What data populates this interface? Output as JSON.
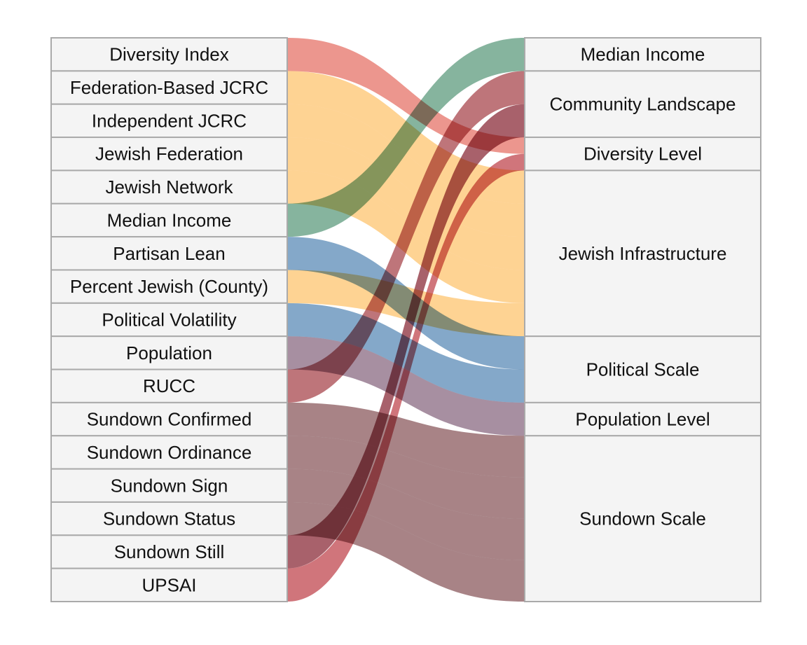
{
  "sources": [
    "Diversity Index",
    "Federation-Based JCRC",
    "Independent JCRC",
    "Jewish Federation",
    "Jewish Network",
    "Median Income",
    "Partisan Lean",
    "Percent Jewish (County)",
    "Political Volatility",
    "Population",
    "RUCC",
    "Sundown Confirmed",
    "Sundown Ordinance",
    "Sundown Sign",
    "Sundown Status",
    "Sundown Still",
    "UPSAI"
  ],
  "targets": [
    {
      "label": "Median Income",
      "weight": 1
    },
    {
      "label": "Community Landscape",
      "weight": 2
    },
    {
      "label": "Diversity Level",
      "weight": 1
    },
    {
      "label": "Jewish Infrastructure",
      "weight": 5
    },
    {
      "label": "Political Scale",
      "weight": 2
    },
    {
      "label": "Population Level",
      "weight": 1
    },
    {
      "label": "Sundown Scale",
      "weight": 5
    }
  ],
  "flows": [
    {
      "source": "Diversity Index",
      "target": "Diversity Level",
      "color": "#e57368"
    },
    {
      "source": "Federation-Based JCRC",
      "target": "Jewish Infrastructure",
      "color": "#fdc46f"
    },
    {
      "source": "Independent JCRC",
      "target": "Jewish Infrastructure",
      "color": "#fdc46f"
    },
    {
      "source": "Jewish Federation",
      "target": "Jewish Infrastructure",
      "color": "#fdc46f"
    },
    {
      "source": "Jewish Network",
      "target": "Jewish Infrastructure",
      "color": "#fdc46f"
    },
    {
      "source": "Median Income",
      "target": "Median Income",
      "color": "#5e9b7e"
    },
    {
      "source": "Partisan Lean",
      "target": "Political Scale",
      "color": "#5b8bb7"
    },
    {
      "source": "Percent Jewish (County)",
      "target": "Jewish Infrastructure",
      "color": "#fdc46f"
    },
    {
      "source": "Political Volatility",
      "target": "Political Scale",
      "color": "#5b8bb7"
    },
    {
      "source": "Population",
      "target": "Population Level",
      "color": "#8a6a82"
    },
    {
      "source": "RUCC",
      "target": "Community Landscape",
      "color": "#a8474e"
    },
    {
      "source": "Sundown Confirmed",
      "target": "Sundown Scale",
      "color": "#8b5a5e"
    },
    {
      "source": "Sundown Ordinance",
      "target": "Sundown Scale",
      "color": "#8b5a5e"
    },
    {
      "source": "Sundown Sign",
      "target": "Sundown Scale",
      "color": "#8b5a5e"
    },
    {
      "source": "Sundown Status",
      "target": "Sundown Scale",
      "color": "#8b5a5e"
    },
    {
      "source": "Sundown Still",
      "target": "Community Landscape",
      "color": "#8b2c3a"
    },
    {
      "source": "UPSAI",
      "target": "Diversity Level",
      "color": "#c0474f"
    }
  ]
}
